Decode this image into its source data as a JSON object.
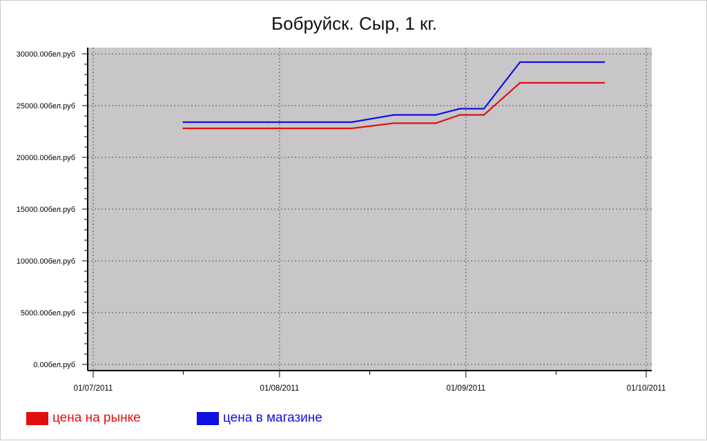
{
  "chart_data": {
    "type": "line",
    "title": "Бобруйск. Сыр, 1 кг.",
    "xlabel": "",
    "ylabel": "",
    "x_ticks": [
      "01/07/2011",
      "01/08/2011",
      "01/09/2011",
      "01/10/2011"
    ],
    "y_ticks": [
      "0.00бел.руб",
      "5000.00бел.руб",
      "10000.00бел.руб",
      "15000.00бел.руб",
      "20000.00бел.руб",
      "25000.00бел.руб",
      "30000.00бел.руб"
    ],
    "xlim": [
      "2011-07-01",
      "2011-10-01"
    ],
    "ylim": [
      0,
      30000
    ],
    "grid": true,
    "legend_position": "bottom",
    "series": [
      {
        "name": "цена на рынке",
        "color": "#e01010",
        "points": [
          {
            "x": "2011-07-16",
            "y": 22800
          },
          {
            "x": "2011-07-23",
            "y": 22800
          },
          {
            "x": "2011-07-30",
            "y": 22800
          },
          {
            "x": "2011-08-06",
            "y": 22800
          },
          {
            "x": "2011-08-13",
            "y": 22800
          },
          {
            "x": "2011-08-20",
            "y": 23300
          },
          {
            "x": "2011-08-27",
            "y": 23300
          },
          {
            "x": "2011-08-31",
            "y": 24100
          },
          {
            "x": "2011-09-04",
            "y": 24100
          },
          {
            "x": "2011-09-10",
            "y": 27200
          },
          {
            "x": "2011-09-17",
            "y": 27200
          },
          {
            "x": "2011-09-24",
            "y": 27200
          }
        ]
      },
      {
        "name": "цена в магазине",
        "color": "#1010e0",
        "points": [
          {
            "x": "2011-07-16",
            "y": 23400
          },
          {
            "x": "2011-07-23",
            "y": 23400
          },
          {
            "x": "2011-07-30",
            "y": 23400
          },
          {
            "x": "2011-08-06",
            "y": 23400
          },
          {
            "x": "2011-08-13",
            "y": 23400
          },
          {
            "x": "2011-08-20",
            "y": 24100
          },
          {
            "x": "2011-08-27",
            "y": 24100
          },
          {
            "x": "2011-08-31",
            "y": 24700
          },
          {
            "x": "2011-09-04",
            "y": 24700
          },
          {
            "x": "2011-09-10",
            "y": 29200
          },
          {
            "x": "2011-09-17",
            "y": 29200
          },
          {
            "x": "2011-09-24",
            "y": 29200
          }
        ]
      }
    ]
  },
  "colors": {
    "plot_background": "#c8c6c9",
    "grid": "#555555",
    "axis": "#000000"
  }
}
